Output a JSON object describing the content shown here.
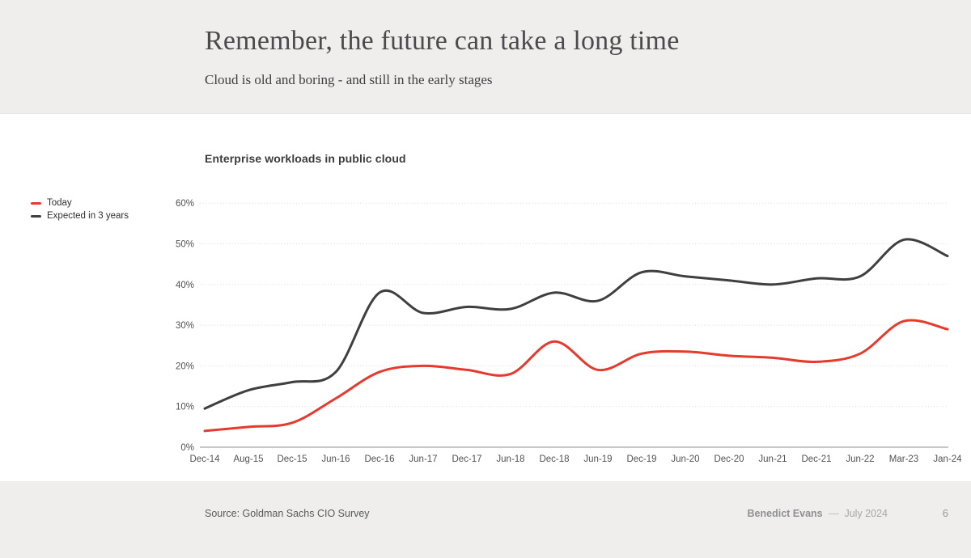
{
  "slide": {
    "title": "Remember, the future can take a long time",
    "subtitle": "Cloud is old and boring - and still in the early stages"
  },
  "chart": {
    "title": "Enterprise workloads in public cloud"
  },
  "chart_data": {
    "type": "line",
    "title": "Enterprise workloads in public cloud",
    "categories": [
      "Dec-14",
      "Aug-15",
      "Dec-15",
      "Jun-16",
      "Dec-16",
      "Jun-17",
      "Dec-17",
      "Jun-18",
      "Dec-18",
      "Jun-19",
      "Dec-19",
      "Jun-20",
      "Dec-20",
      "Jun-21",
      "Dec-21",
      "Jun-22",
      "Mar-23",
      "Jan-24"
    ],
    "series": [
      {
        "name": "Today",
        "color": "#e73a2e",
        "values": [
          4,
          5,
          6,
          12,
          18.5,
          20,
          19,
          18,
          26,
          19,
          23,
          23.5,
          22.5,
          22,
          21,
          23,
          31,
          29
        ]
      },
      {
        "name": "Expected in 3 years",
        "color": "#3f3f41",
        "values": [
          9.5,
          14,
          16,
          18.5,
          38,
          33,
          34.5,
          34,
          38,
          36,
          43,
          42,
          41,
          40,
          41.5,
          42,
          51,
          47
        ]
      }
    ],
    "ylim": [
      0,
      60
    ],
    "ytick_step": 10,
    "ytick_labels": [
      "0%",
      "10%",
      "20%",
      "30%",
      "40%",
      "50%",
      "60%"
    ],
    "grid": "horizontal-dotted",
    "legend_position": "left",
    "colors": {
      "grid_dotted": "#dbdbdb",
      "axis_baseline": "#c7c7c9",
      "band_background": "#efeeec"
    }
  },
  "footer": {
    "source": "Source: Goldman Sachs CIO Survey",
    "author": "Benedict Evans",
    "separator": "––",
    "date": "July 2024",
    "page": "6"
  }
}
